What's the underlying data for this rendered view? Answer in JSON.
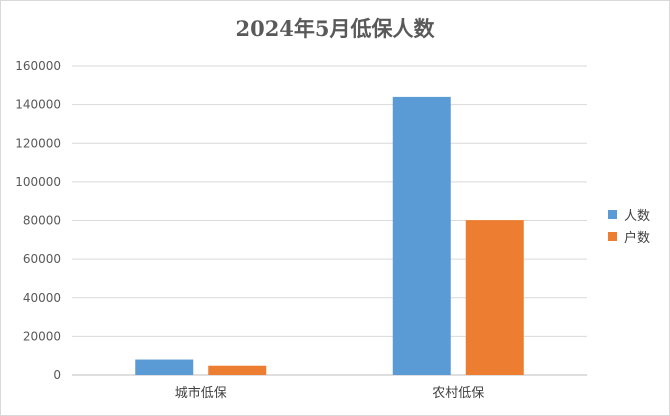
{
  "chart_data": {
    "type": "bar",
    "title": "2024年5月低保人数",
    "categories": [
      "城市低保",
      "农村低保"
    ],
    "series": [
      {
        "name": "人数",
        "color": "#5b9bd5",
        "values": [
          8000,
          144000
        ]
      },
      {
        "name": "户数",
        "color": "#ed7d31",
        "values": [
          4800,
          80200
        ]
      }
    ],
    "ylim": [
      0,
      160000
    ],
    "yticks": [
      0,
      20000,
      40000,
      60000,
      80000,
      100000,
      120000,
      140000,
      160000
    ],
    "ytick_labels": [
      "0",
      "20000",
      "40000",
      "60000",
      "80000",
      "100000",
      "120000",
      "140000",
      "160000"
    ],
    "grid": true,
    "legend_position": "right"
  }
}
